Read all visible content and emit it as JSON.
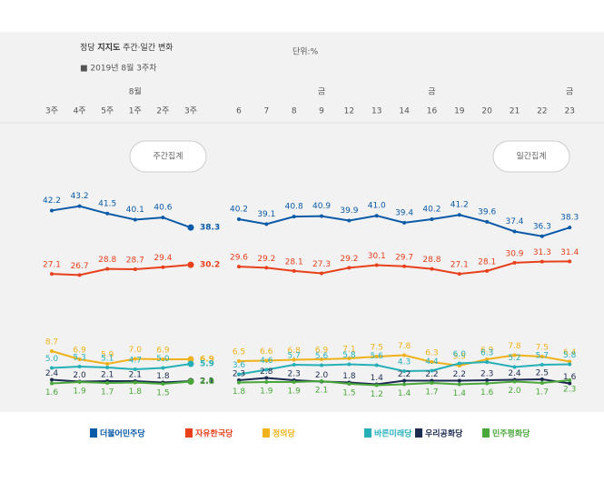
{
  "header": {
    "title": [
      "정당 ",
      "지지도",
      " 주간·일간 변화"
    ],
    "unit": "단위:%",
    "subtitle": "■ 2019년 8월 3주차"
  },
  "chart_data": [
    {
      "type": "line",
      "annotation": "주간집계",
      "categories": [
        "3주",
        "4주",
        "5주",
        "1주",
        "2주",
        "3주"
      ],
      "top_labels": [
        null,
        null,
        null,
        "8월",
        null,
        null
      ],
      "series": [
        {
          "name": "더불어민주당",
          "color": "#0a5aa8",
          "values": [
            42.2,
            43.2,
            41.5,
            40.1,
            40.6,
            38.3
          ],
          "value_labels": [
            "42.2",
            "43.2",
            "41.5",
            "40.1",
            "40.6",
            "38.3"
          ]
        },
        {
          "name": "자유한국당",
          "color": "#e8401c",
          "values": [
            27.1,
            26.7,
            28.8,
            28.7,
            29.4,
            30.2
          ],
          "value_labels": [
            "27.1",
            "26.7",
            "28.8",
            "28.7",
            "29.4",
            "30.2"
          ]
        },
        {
          "name": "정의당",
          "color": "#f0b21a",
          "values": [
            8.7,
            6.9,
            5.9,
            7.0,
            6.9,
            6.9
          ],
          "value_labels": [
            "8.7",
            "6.9",
            "5.9",
            "7.0",
            "6.9",
            "6.9"
          ]
        },
        {
          "name": "바른미래당",
          "color": "#25b0b8",
          "values": [
            5.0,
            5.3,
            5.1,
            4.7,
            5.0,
            5.9
          ],
          "value_labels": [
            "5.0",
            "5.3",
            "5.1",
            "4.7",
            "5.0",
            "5.9"
          ]
        },
        {
          "name": "우리공화당",
          "color": "#1a2a50",
          "values": [
            2.4,
            2.0,
            2.1,
            2.1,
            1.8,
            2.1
          ],
          "value_labels": [
            "2.4",
            "2.0",
            "2.1",
            "2.1",
            "1.8",
            "2.1"
          ]
        },
        {
          "name": "민주평화당",
          "color": "#4aa83a",
          "values": [
            1.6,
            1.9,
            1.7,
            1.8,
            1.5,
            2.0
          ],
          "value_labels": [
            "1.6",
            "1.9",
            "1.7",
            "1.8",
            "1.5",
            "2.0"
          ]
        }
      ]
    },
    {
      "type": "line",
      "annotation": "일간집계",
      "categories": [
        "6",
        "7",
        "8",
        "9",
        "12",
        "13",
        "14",
        "16",
        "19",
        "20",
        "21",
        "22",
        "23"
      ],
      "top_labels": [
        null,
        null,
        null,
        "금",
        null,
        null,
        null,
        "금",
        null,
        null,
        null,
        null,
        "금"
      ],
      "series": [
        {
          "color": "#0a5aa8",
          "values": [
            40.2,
            39.1,
            40.8,
            40.9,
            39.9,
            41.0,
            39.4,
            40.2,
            41.2,
            39.6,
            37.4,
            36.3,
            38.3
          ],
          "value_labels": [
            "40.2",
            "39.1",
            "40.8",
            "40.9",
            "39.9",
            "41.0",
            "39.4",
            "40.2",
            "41.2",
            "39.6",
            "37.4",
            "36.3",
            "38.3"
          ]
        },
        {
          "color": "#e8401c",
          "values": [
            29.6,
            29.2,
            28.1,
            27.3,
            29.2,
            30.1,
            29.7,
            28.8,
            27.1,
            28.1,
            30.9,
            31.3,
            31.4
          ],
          "value_labels": [
            "29.6",
            "29.2",
            "28.1",
            "27.3",
            "29.2",
            "30.1",
            "29.7",
            "28.8",
            "27.1",
            "28.1",
            "30.9",
            "31.3",
            "31.4"
          ]
        },
        {
          "color": "#f0b21a",
          "values": [
            6.5,
            6.6,
            6.8,
            6.9,
            7.1,
            7.5,
            7.8,
            6.3,
            5.5,
            6.9,
            7.8,
            7.5,
            6.4
          ],
          "value_labels": [
            "6.5",
            "6.6",
            "6.8",
            "6.9",
            "7.1",
            "7.5",
            "7.8",
            "6.3",
            "5.5",
            "6.9",
            "7.8",
            "7.5",
            "6.4"
          ]
        },
        {
          "color": "#25b0b8",
          "values": [
            3.6,
            4.6,
            5.7,
            5.6,
            5.8,
            5.6,
            4.3,
            4.4,
            6.0,
            6.3,
            5.2,
            5.7,
            5.8
          ],
          "value_labels": [
            "3.6",
            "4.6",
            "5.7",
            "5.6",
            "5.8",
            "5.6",
            "4.3",
            "4.4",
            "6.0",
            "6.3",
            "5.2",
            "5.7",
            "5.8"
          ]
        },
        {
          "color": "#1a2a50",
          "values": [
            2.3,
            2.8,
            2.3,
            2.0,
            1.8,
            1.4,
            2.2,
            2.2,
            2.2,
            2.3,
            2.4,
            2.5,
            1.6
          ],
          "value_labels": [
            "2.3",
            "2.8",
            "2.3",
            "2.0",
            "1.8",
            "1.4",
            "2.2",
            "2.2",
            "2.2",
            "2.3",
            "2.4",
            "2.5",
            "1.6"
          ]
        },
        {
          "color": "#4aa83a",
          "values": [
            1.8,
            1.9,
            1.9,
            2.1,
            1.5,
            1.2,
            1.4,
            1.7,
            1.4,
            1.6,
            2.0,
            1.7,
            2.3
          ],
          "value_labels": [
            "1.8",
            "1.9",
            "1.9",
            "2.1",
            "1.5",
            "1.2",
            "1.4",
            "1.7",
            "1.4",
            "1.6",
            "2.0",
            "1.7",
            "2.3"
          ]
        }
      ]
    }
  ]
}
